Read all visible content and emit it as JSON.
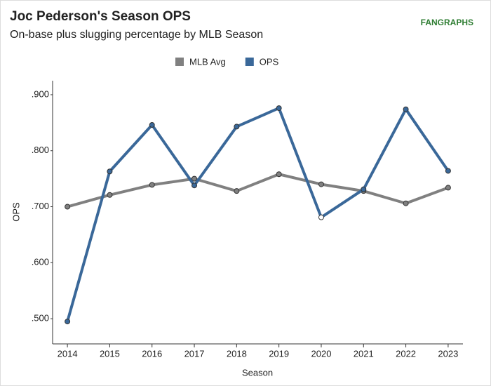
{
  "chart_data": {
    "type": "line",
    "title": "Joc Pederson's Season OPS",
    "subtitle": "On-base plus slugging percentage by MLB Season",
    "logo": "FANGRAPHS",
    "x_label": "Season",
    "y_label": "OPS",
    "x": [
      2014,
      2015,
      2016,
      2017,
      2018,
      2019,
      2020,
      2021,
      2022,
      2023
    ],
    "series": [
      {
        "name": "MLB Avg",
        "color": "#808080",
        "values": [
          0.7,
          0.721,
          0.739,
          0.75,
          0.728,
          0.758,
          0.74,
          0.728,
          0.706,
          0.734
        ]
      },
      {
        "name": "OPS",
        "color": "#3a6899",
        "values": [
          0.495,
          0.763,
          0.846,
          0.738,
          0.843,
          0.876,
          0.681,
          0.731,
          0.874,
          0.764
        ]
      }
    ],
    "hollow_x": [
      2020
    ],
    "xlim": [
      2013.65,
      2023.35
    ],
    "xticks": [
      2014,
      2015,
      2016,
      2017,
      2018,
      2019,
      2020,
      2021,
      2022,
      2023
    ],
    "ylim": [
      0.455,
      0.925
    ],
    "yticks": [
      {
        "value": 0.5,
        "label": ".500"
      },
      {
        "value": 0.6,
        "label": ".600"
      },
      {
        "value": 0.7,
        "label": ".700"
      },
      {
        "value": 0.8,
        "label": ".800"
      },
      {
        "value": 0.9,
        "label": ".900"
      }
    ],
    "legend": "top",
    "grid": false
  }
}
